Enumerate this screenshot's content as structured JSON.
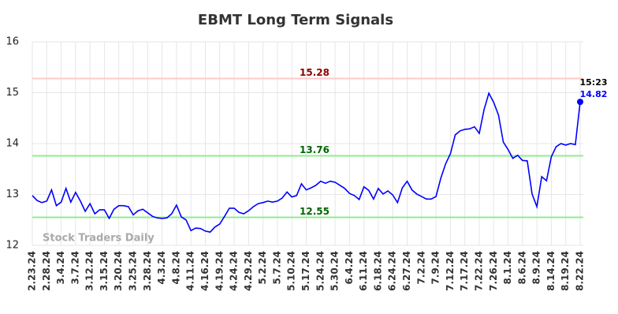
{
  "chart_data": {
    "type": "line",
    "title": "EBMT Long Term Signals",
    "categories": [
      "2.23.24",
      null,
      null,
      "2.28.24",
      null,
      null,
      "3.4.24",
      null,
      null,
      "3.7.24",
      null,
      null,
      "3.12.24",
      null,
      null,
      "3.15.24",
      null,
      null,
      "3.20.24",
      null,
      null,
      "3.25.24",
      null,
      null,
      "3.28.24",
      null,
      null,
      "4.3.24",
      null,
      null,
      "4.8.24",
      null,
      null,
      "4.11.24",
      null,
      null,
      "4.16.24",
      null,
      null,
      "4.19.24",
      null,
      null,
      "4.24.24",
      null,
      null,
      "4.29.24",
      null,
      null,
      "5.2.24",
      null,
      null,
      "5.7.24",
      null,
      null,
      "5.10.24",
      null,
      null,
      "5.17.24",
      null,
      null,
      "5.24.24",
      null,
      null,
      "5.30.24",
      null,
      null,
      "6.4.24",
      null,
      null,
      "6.11.24",
      null,
      null,
      "6.18.24",
      null,
      null,
      "6.24.24",
      null,
      null,
      "6.27.24",
      null,
      null,
      "7.2.24",
      null,
      null,
      "7.9.24",
      null,
      null,
      "7.12.24",
      null,
      null,
      "7.17.24",
      null,
      null,
      "7.22.24",
      null,
      null,
      "7.26.24",
      null,
      null,
      "8.1.24",
      null,
      null,
      "8.6.24",
      null,
      null,
      "8.9.24",
      null,
      null,
      "8.14.24",
      null,
      null,
      "8.19.24",
      null,
      null,
      "8.22.24"
    ],
    "values": [
      12.98,
      12.88,
      12.84,
      12.87,
      13.09,
      12.78,
      12.85,
      13.12,
      12.85,
      13.04,
      12.87,
      12.67,
      12.82,
      12.62,
      12.7,
      12.7,
      12.53,
      12.71,
      12.78,
      12.78,
      12.76,
      12.6,
      12.68,
      12.71,
      12.64,
      12.57,
      12.54,
      12.53,
      12.54,
      12.62,
      12.79,
      12.56,
      12.5,
      12.29,
      12.34,
      12.33,
      12.28,
      12.26,
      12.36,
      12.42,
      12.57,
      12.73,
      12.73,
      12.65,
      12.62,
      12.68,
      12.76,
      12.82,
      12.84,
      12.87,
      12.85,
      12.87,
      12.93,
      13.05,
      12.95,
      12.98,
      13.21,
      13.09,
      13.13,
      13.18,
      13.26,
      13.22,
      13.26,
      13.24,
      13.18,
      13.12,
      13.02,
      12.98,
      12.9,
      13.15,
      13.08,
      12.91,
      13.12,
      13.01,
      13.07,
      12.99,
      12.84,
      13.13,
      13.26,
      13.09,
      13.01,
      12.96,
      12.91,
      12.91,
      12.96,
      13.32,
      13.6,
      13.8,
      14.17,
      14.25,
      14.28,
      14.29,
      14.33,
      14.2,
      14.67,
      14.99,
      14.81,
      14.56,
      14.03,
      13.88,
      13.71,
      13.77,
      13.67,
      13.66,
      13.01,
      12.76,
      13.35,
      13.27,
      13.74,
      13.94,
      14.0,
      13.97,
      14.0,
      13.98,
      14.82
    ],
    "color": "#0000ff",
    "ylim": [
      12,
      16
    ],
    "yticks": [
      12,
      13,
      14,
      15,
      16
    ],
    "grid": true,
    "hlines": [
      {
        "value": 15.28,
        "color": "#ffc8c8",
        "label_color": "#8b0000"
      },
      {
        "value": 13.76,
        "color": "#90ee90",
        "label_color": "#006400"
      },
      {
        "value": 12.55,
        "color": "#90ee90",
        "label_color": "#006400"
      }
    ],
    "last_time": "15:23",
    "watermark": "Stock Traders Daily"
  }
}
